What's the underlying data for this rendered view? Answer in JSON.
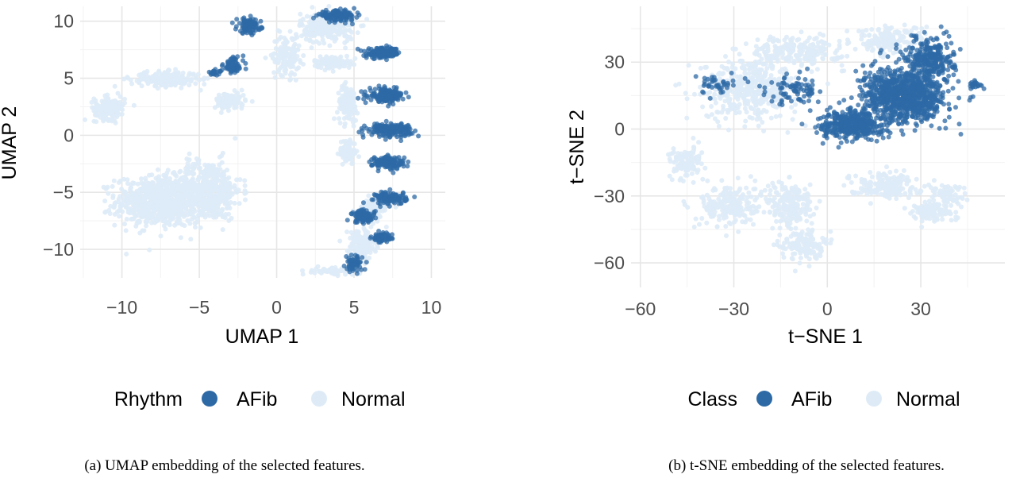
{
  "chart_data": [
    {
      "type": "scatter",
      "panel": "a",
      "xlabel": "UMAP 1",
      "ylabel": "UMAP 2",
      "xlim": [
        -12.7,
        10.9
      ],
      "ylim": [
        -12.5,
        11.3
      ],
      "xticks": [
        -10,
        -5,
        0,
        5,
        10
      ],
      "yticks": [
        -10,
        -5,
        0,
        5,
        10
      ],
      "grid": true,
      "legend": {
        "position": "bottom",
        "title": "Rhythm",
        "entries": [
          "AFib",
          "Normal"
        ]
      },
      "caption": "(a) UMAP embedding of the selected features.",
      "series": [
        {
          "name": "Normal",
          "color": "#deebf7",
          "clusters": [
            {
              "center": [
                -7.5,
                -5.8
              ],
              "spread": [
                2.6,
                2.0
              ],
              "n": 700
            },
            {
              "center": [
                -4.5,
                -4.8
              ],
              "spread": [
                2.0,
                2.4
              ],
              "n": 450
            },
            {
              "center": [
                -10.8,
                2.4
              ],
              "spread": [
                0.9,
                0.9
              ],
              "n": 160
            },
            {
              "center": [
                -7.2,
                4.9
              ],
              "spread": [
                2.0,
                0.6
              ],
              "n": 200
            },
            {
              "center": [
                -3.0,
                3.0
              ],
              "spread": [
                0.9,
                0.7
              ],
              "n": 90
            },
            {
              "center": [
                0.6,
                7.0
              ],
              "spread": [
                0.8,
                1.6
              ],
              "n": 140
            },
            {
              "center": [
                3.3,
                9.4
              ],
              "spread": [
                1.6,
                1.2
              ],
              "n": 230
            },
            {
              "center": [
                3.6,
                6.4
              ],
              "spread": [
                1.1,
                0.5
              ],
              "n": 90
            },
            {
              "center": [
                4.6,
                2.8
              ],
              "spread": [
                0.6,
                1.4
              ],
              "n": 120
            },
            {
              "center": [
                4.6,
                -1.4
              ],
              "spread": [
                0.5,
                1.0
              ],
              "n": 80
            },
            {
              "center": [
                5.5,
                -9.6
              ],
              "spread": [
                0.8,
                1.3
              ],
              "n": 150
            },
            {
              "center": [
                3.7,
                -11.9
              ],
              "spread": [
                1.2,
                0.3
              ],
              "n": 60
            },
            {
              "center": [
                6.2,
                -6.4
              ],
              "spread": [
                0.9,
                1.0
              ],
              "n": 100
            }
          ]
        },
        {
          "name": "AFib",
          "color": "#2d6aa5",
          "clusters": [
            {
              "center": [
                -1.8,
                9.6
              ],
              "spread": [
                0.7,
                0.6
              ],
              "n": 110
            },
            {
              "center": [
                -2.8,
                6.1
              ],
              "spread": [
                0.6,
                0.7
              ],
              "n": 75
            },
            {
              "center": [
                -4.0,
                5.5
              ],
              "spread": [
                0.4,
                0.2
              ],
              "n": 20
            },
            {
              "center": [
                3.9,
                10.5
              ],
              "spread": [
                1.1,
                0.4
              ],
              "n": 130
            },
            {
              "center": [
                6.9,
                7.2
              ],
              "spread": [
                1.0,
                0.4
              ],
              "n": 170
            },
            {
              "center": [
                7.1,
                3.5
              ],
              "spread": [
                1.0,
                0.5
              ],
              "n": 180
            },
            {
              "center": [
                7.3,
                0.5
              ],
              "spread": [
                1.3,
                0.5
              ],
              "n": 190
            },
            {
              "center": [
                7.2,
                -2.4
              ],
              "spread": [
                0.9,
                0.5
              ],
              "n": 150
            },
            {
              "center": [
                7.4,
                -5.5
              ],
              "spread": [
                0.9,
                0.5
              ],
              "n": 130
            },
            {
              "center": [
                5.6,
                -7.1
              ],
              "spread": [
                0.7,
                0.5
              ],
              "n": 100
            },
            {
              "center": [
                6.8,
                -9.0
              ],
              "spread": [
                0.6,
                0.4
              ],
              "n": 60
            },
            {
              "center": [
                5.0,
                -11.3
              ],
              "spread": [
                0.5,
                0.6
              ],
              "n": 60
            }
          ]
        }
      ]
    },
    {
      "type": "scatter",
      "panel": "b",
      "xlabel": "t−SNE 1",
      "ylabel": "t−SNE 2",
      "xlim": [
        -63,
        57
      ],
      "ylim": [
        -71,
        55
      ],
      "xticks": [
        -60,
        -30,
        0,
        30
      ],
      "xticklabels": [
        "−60",
        "−30",
        "0",
        "30"
      ],
      "yticks": [
        -60,
        -30,
        0,
        30
      ],
      "yticklabels": [
        "−60",
        "−30",
        "0",
        "30"
      ],
      "grid": true,
      "legend": {
        "position": "bottom",
        "title": "Class",
        "entries": [
          "AFib",
          "Normal"
        ]
      },
      "caption": "(b) t-SNE embedding of the selected features.",
      "series": [
        {
          "name": "Normal",
          "color": "#deebf7",
          "clusters": [
            {
              "center": [
                -25,
                18
              ],
              "spread": [
                14,
                12
              ],
              "n": 420
            },
            {
              "center": [
                -10,
                35
              ],
              "spread": [
                14,
                6
              ],
              "n": 220
            },
            {
              "center": [
                -45,
                -15
              ],
              "spread": [
                5,
                6
              ],
              "n": 110
            },
            {
              "center": [
                -32,
                -34
              ],
              "spread": [
                8,
                9
              ],
              "n": 200
            },
            {
              "center": [
                -12,
                -34
              ],
              "spread": [
                7,
                10
              ],
              "n": 200
            },
            {
              "center": [
                -8,
                -52
              ],
              "spread": [
                6,
                6
              ],
              "n": 130
            },
            {
              "center": [
                18,
                -25
              ],
              "spread": [
                10,
                5
              ],
              "n": 170
            },
            {
              "center": [
                33,
                -37
              ],
              "spread": [
                7,
                4
              ],
              "n": 90
            },
            {
              "center": [
                38,
                -30
              ],
              "spread": [
                6,
                5
              ],
              "n": 70
            },
            {
              "center": [
                20,
                40
              ],
              "spread": [
                10,
                6
              ],
              "n": 150
            }
          ]
        },
        {
          "name": "AFib",
          "color": "#2d6aa5",
          "clusters": [
            {
              "center": [
                25,
                15
              ],
              "spread": [
                12,
                11
              ],
              "n": 900
            },
            {
              "center": [
                8,
                2
              ],
              "spread": [
                9,
                6
              ],
              "n": 400
            },
            {
              "center": [
                33,
                32
              ],
              "spread": [
                7,
                8
              ],
              "n": 250
            },
            {
              "center": [
                -10,
                18
              ],
              "spread": [
                8,
                6
              ],
              "n": 80
            },
            {
              "center": [
                -35,
                20
              ],
              "spread": [
                8,
                5
              ],
              "n": 40
            },
            {
              "center": [
                48,
                20
              ],
              "spread": [
                2,
                1.5
              ],
              "n": 20
            }
          ]
        }
      ]
    }
  ]
}
